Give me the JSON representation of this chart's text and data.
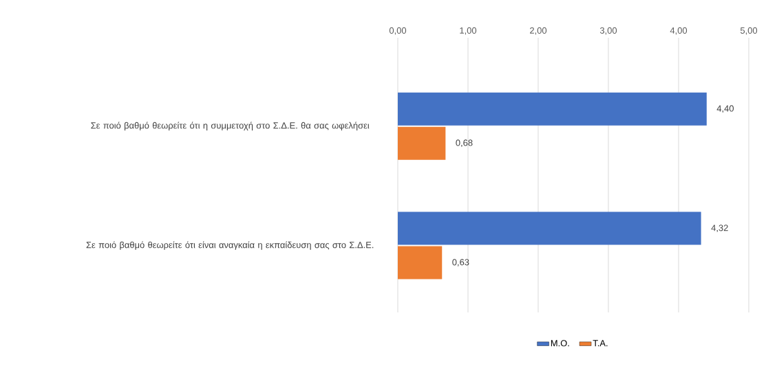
{
  "chart_data": {
    "type": "bar",
    "orientation": "horizontal",
    "categories": [
      "Σε ποιό βαθμό θεωρείτε ότι η συμμετοχή στο Σ.Δ.Ε. θα σας ωφελήσει",
      "Σε ποιό βαθμό θεωρείτε ότι είναι αναγκαία η εκπαίδευση σας στο Σ.Δ.Ε."
    ],
    "series": [
      {
        "name": "Μ.Ο.",
        "color": "#4472c4",
        "values": [
          4.4,
          4.32
        ],
        "value_labels": [
          "4,40",
          "4,32"
        ]
      },
      {
        "name": "Τ.Α.",
        "color": "#ed7d31",
        "values": [
          0.68,
          0.63
        ],
        "value_labels": [
          "0,68",
          "0,63"
        ]
      }
    ],
    "xlim": [
      0,
      5
    ],
    "xticks": [
      {
        "value": 0,
        "label": "0,00"
      },
      {
        "value": 1,
        "label": "1,00"
      },
      {
        "value": 2,
        "label": "2,00"
      },
      {
        "value": 3,
        "label": "3,00"
      },
      {
        "value": 4,
        "label": "4,00"
      },
      {
        "value": 5,
        "label": "5,00"
      }
    ],
    "grid": "x",
    "legend": "bottom"
  }
}
